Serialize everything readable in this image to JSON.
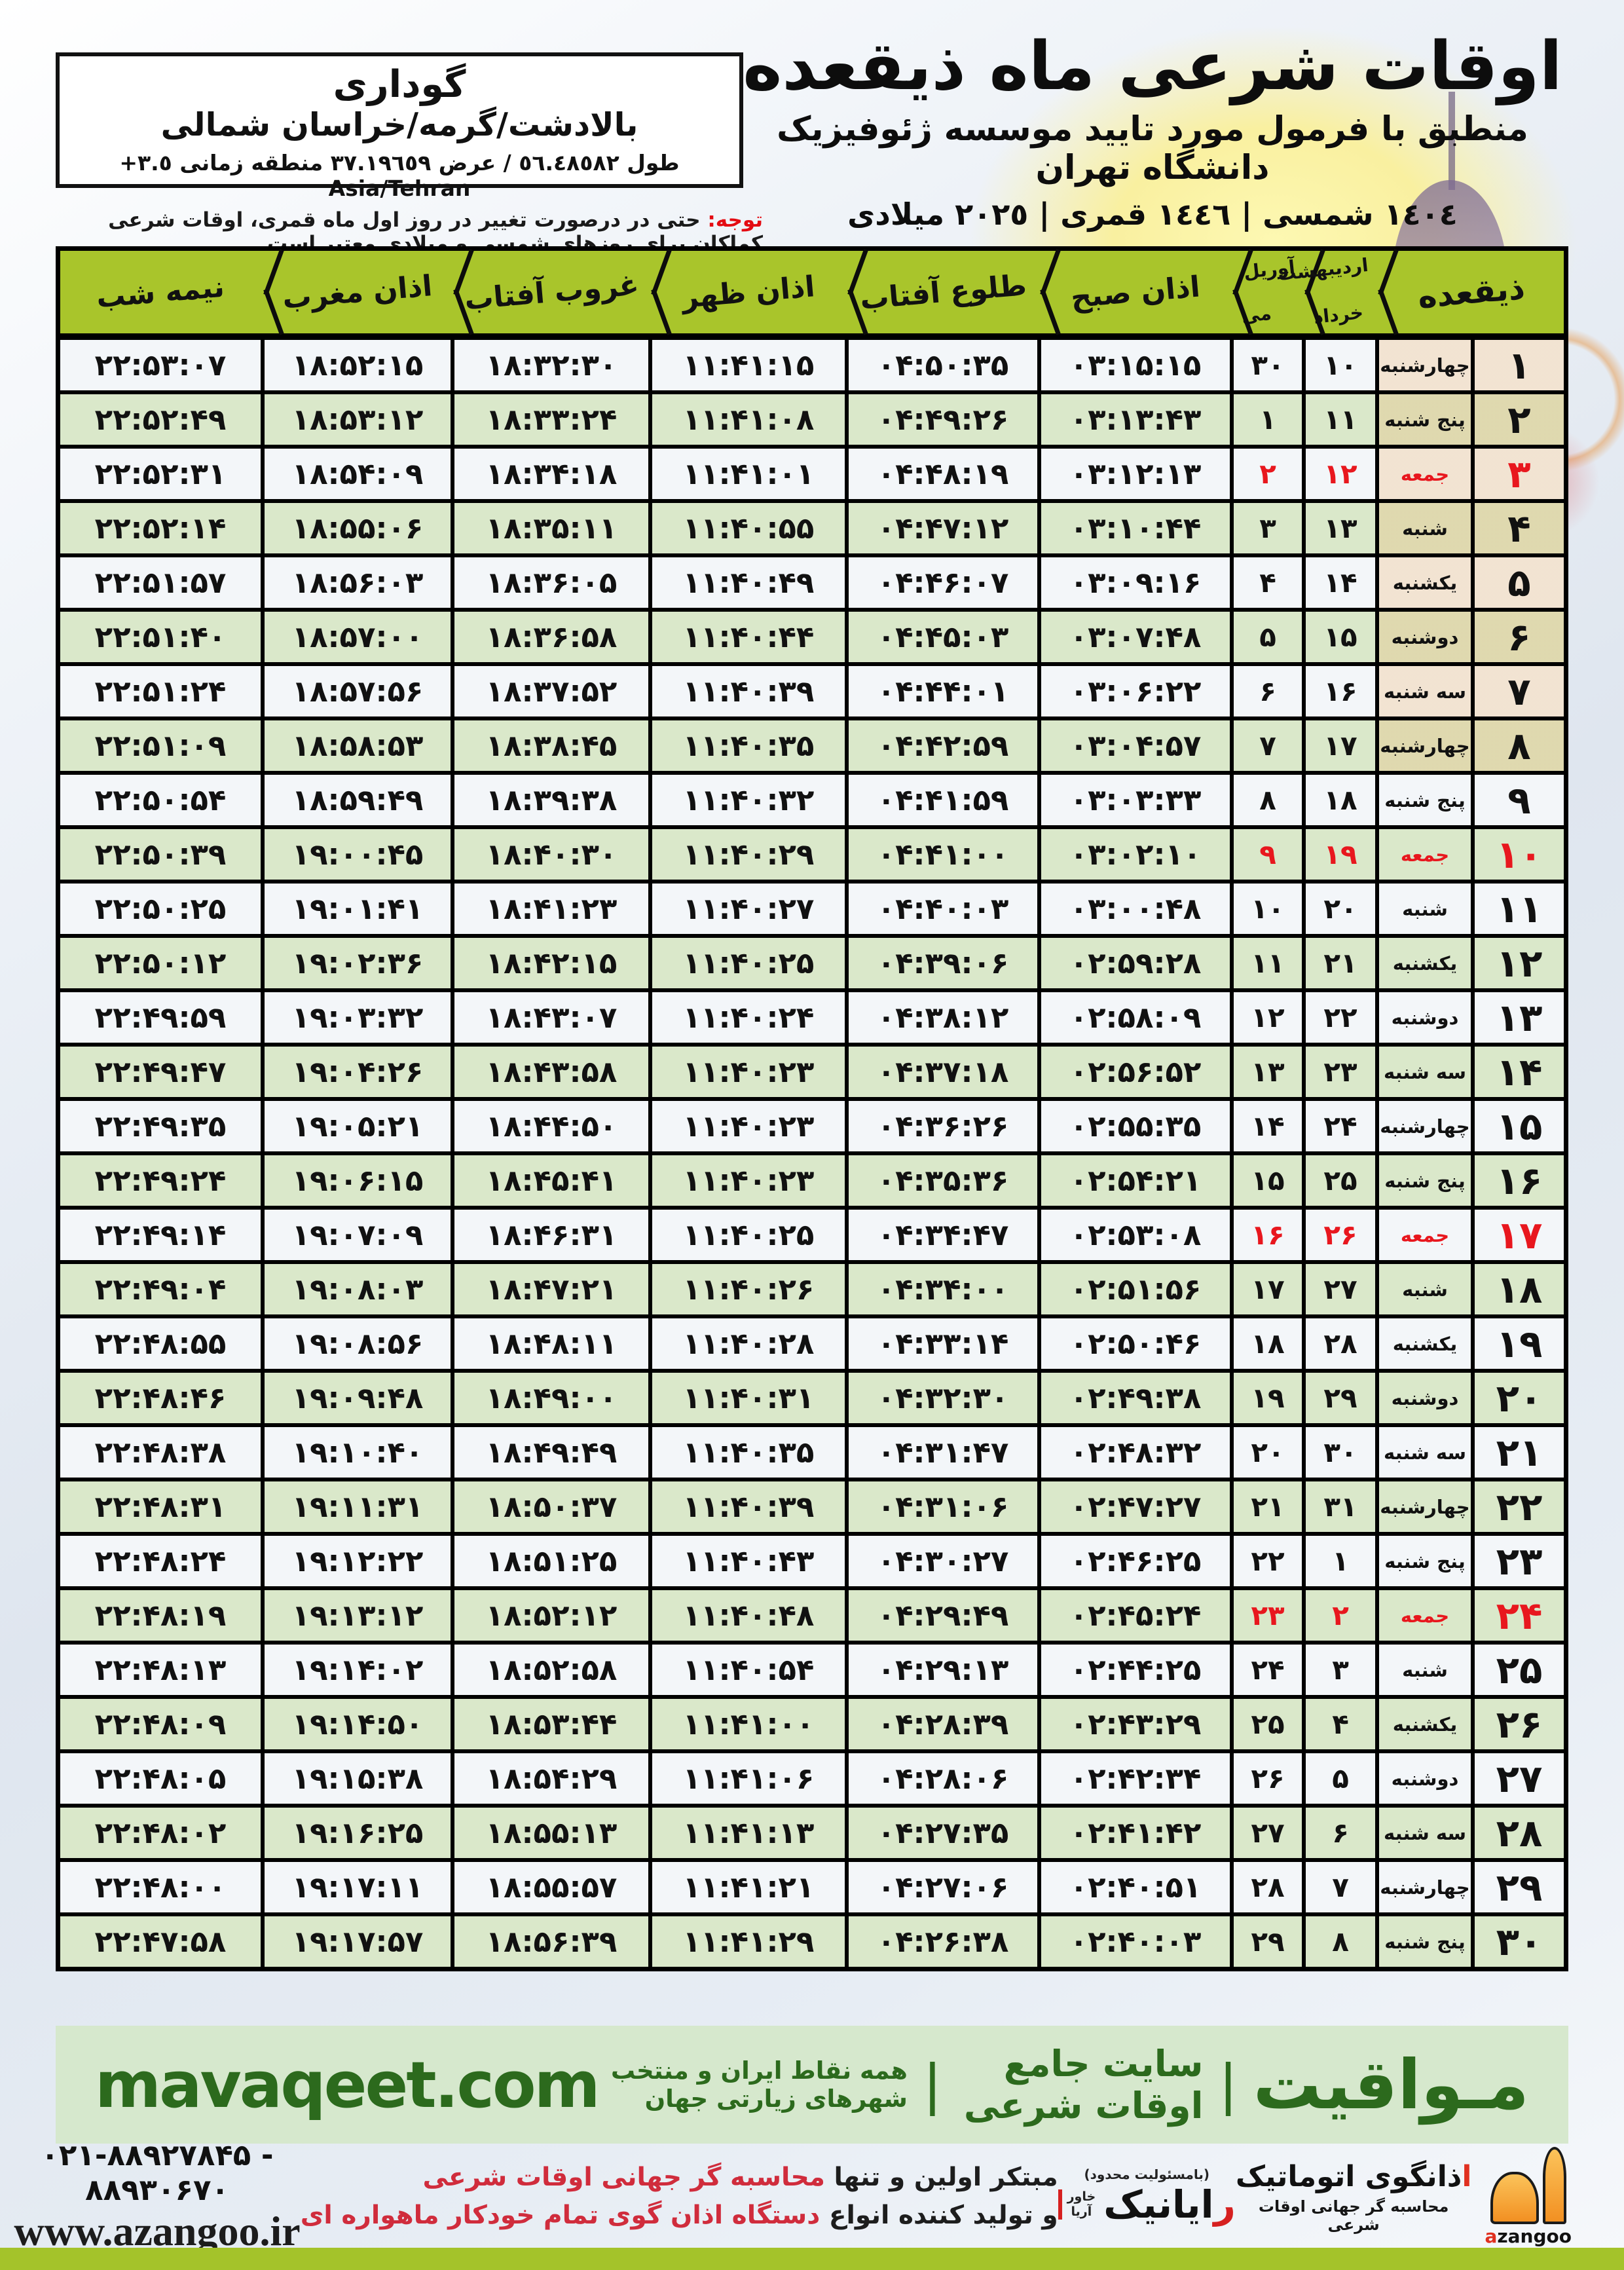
{
  "page": {
    "title": "اوقات شرعی ماه ذیقعده",
    "subtitle": "منطبق با فرمول مورد تایید موسسه ژئوفیزیک دانشگاه تهران",
    "year_line": "١٤٠٤ شمسی | ١٤٤٦ قمری | ٢٠٢٥ میلادی"
  },
  "location": {
    "name": "گوداری",
    "region": "بالادشت/گرمه/خراسان شمالی",
    "coords": "طول ٥٦.٤٨٥٨٢ / عرض ٣٧.١٩٦٥٩ منطقه زمانی",
    "timezone": "+٣.٥ Asia/Tehran"
  },
  "note": {
    "label": "توجه:",
    "text": " حتی در درصورت تغییر در روز اول ماه قمری، اوقات شرعی کماکان برای روزهای شمسی و میلادی معتبر است."
  },
  "table": {
    "headers": {
      "day": "ذیقعده",
      "month_fa_top": "اردیبهشت",
      "month_fa_bottom": "خرداد",
      "month_en_top": "آوریل",
      "month_en_bottom": "می",
      "fajr": "اذان صبح",
      "sunrise": "طلوع آفتاب",
      "dhuhr": "اذان ظهر",
      "sunset": "غروب آفتاب",
      "maghrib": "اذان مغرب",
      "midnight": "نیمه شب"
    },
    "rows": [
      {
        "day": "۱",
        "weekday": "چهارشنبه",
        "month_day_fa": "۱۰",
        "month_day_en": "۳۰",
        "fajr": "۰۳:۱۵:۱۵",
        "sunrise": "۰۴:۵۰:۳۵",
        "dhuhr": "۱۱:۴۱:۱۵",
        "sunset": "۱۸:۳۲:۳۰",
        "maghrib": "۱۸:۵۲:۱۵",
        "midnight": "۲۲:۵۳:۰۷",
        "friday": false
      },
      {
        "day": "۲",
        "weekday": "پنج شنبه",
        "month_day_fa": "۱۱",
        "month_day_en": "۱",
        "fajr": "۰۳:۱۳:۴۳",
        "sunrise": "۰۴:۴۹:۲۶",
        "dhuhr": "۱۱:۴۱:۰۸",
        "sunset": "۱۸:۳۳:۲۴",
        "maghrib": "۱۸:۵۳:۱۲",
        "midnight": "۲۲:۵۲:۴۹",
        "friday": false
      },
      {
        "day": "۳",
        "weekday": "جمعه",
        "month_day_fa": "۱۲",
        "month_day_en": "۲",
        "fajr": "۰۳:۱۲:۱۳",
        "sunrise": "۰۴:۴۸:۱۹",
        "dhuhr": "۱۱:۴۱:۰۱",
        "sunset": "۱۸:۳۴:۱۸",
        "maghrib": "۱۸:۵۴:۰۹",
        "midnight": "۲۲:۵۲:۳۱",
        "friday": true
      },
      {
        "day": "۴",
        "weekday": "شنبه",
        "month_day_fa": "۱۳",
        "month_day_en": "۳",
        "fajr": "۰۳:۱۰:۴۴",
        "sunrise": "۰۴:۴۷:۱۲",
        "dhuhr": "۱۱:۴۰:۵۵",
        "sunset": "۱۸:۳۵:۱۱",
        "maghrib": "۱۸:۵۵:۰۶",
        "midnight": "۲۲:۵۲:۱۴",
        "friday": false
      },
      {
        "day": "۵",
        "weekday": "یکشنبه",
        "month_day_fa": "۱۴",
        "month_day_en": "۴",
        "fajr": "۰۳:۰۹:۱۶",
        "sunrise": "۰۴:۴۶:۰۷",
        "dhuhr": "۱۱:۴۰:۴۹",
        "sunset": "۱۸:۳۶:۰۵",
        "maghrib": "۱۸:۵۶:۰۳",
        "midnight": "۲۲:۵۱:۵۷",
        "friday": false
      },
      {
        "day": "۶",
        "weekday": "دوشنبه",
        "month_day_fa": "۱۵",
        "month_day_en": "۵",
        "fajr": "۰۳:۰۷:۴۸",
        "sunrise": "۰۴:۴۵:۰۳",
        "dhuhr": "۱۱:۴۰:۴۴",
        "sunset": "۱۸:۳۶:۵۸",
        "maghrib": "۱۸:۵۷:۰۰",
        "midnight": "۲۲:۵۱:۴۰",
        "friday": false
      },
      {
        "day": "۷",
        "weekday": "سه شنبه",
        "month_day_fa": "۱۶",
        "month_day_en": "۶",
        "fajr": "۰۳:۰۶:۲۲",
        "sunrise": "۰۴:۴۴:۰۱",
        "dhuhr": "۱۱:۴۰:۳۹",
        "sunset": "۱۸:۳۷:۵۲",
        "maghrib": "۱۸:۵۷:۵۶",
        "midnight": "۲۲:۵۱:۲۴",
        "friday": false
      },
      {
        "day": "۸",
        "weekday": "چهارشنبه",
        "month_day_fa": "۱۷",
        "month_day_en": "۷",
        "fajr": "۰۳:۰۴:۵۷",
        "sunrise": "۰۴:۴۲:۵۹",
        "dhuhr": "۱۱:۴۰:۳۵",
        "sunset": "۱۸:۳۸:۴۵",
        "maghrib": "۱۸:۵۸:۵۳",
        "midnight": "۲۲:۵۱:۰۹",
        "friday": false
      },
      {
        "day": "۹",
        "weekday": "پنج شنبه",
        "month_day_fa": "۱۸",
        "month_day_en": "۸",
        "fajr": "۰۳:۰۳:۳۳",
        "sunrise": "۰۴:۴۱:۵۹",
        "dhuhr": "۱۱:۴۰:۳۲",
        "sunset": "۱۸:۳۹:۳۸",
        "maghrib": "۱۸:۵۹:۴۹",
        "midnight": "۲۲:۵۰:۵۴",
        "friday": false
      },
      {
        "day": "۱۰",
        "weekday": "جمعه",
        "month_day_fa": "۱۹",
        "month_day_en": "۹",
        "fajr": "۰۳:۰۲:۱۰",
        "sunrise": "۰۴:۴۱:۰۰",
        "dhuhr": "۱۱:۴۰:۲۹",
        "sunset": "۱۸:۴۰:۳۰",
        "maghrib": "۱۹:۰۰:۴۵",
        "midnight": "۲۲:۵۰:۳۹",
        "friday": true
      },
      {
        "day": "۱۱",
        "weekday": "شنبه",
        "month_day_fa": "۲۰",
        "month_day_en": "۱۰",
        "fajr": "۰۳:۰۰:۴۸",
        "sunrise": "۰۴:۴۰:۰۳",
        "dhuhr": "۱۱:۴۰:۲۷",
        "sunset": "۱۸:۴۱:۲۳",
        "maghrib": "۱۹:۰۱:۴۱",
        "midnight": "۲۲:۵۰:۲۵",
        "friday": false
      },
      {
        "day": "۱۲",
        "weekday": "یکشنبه",
        "month_day_fa": "۲۱",
        "month_day_en": "۱۱",
        "fajr": "۰۲:۵۹:۲۸",
        "sunrise": "۰۴:۳۹:۰۶",
        "dhuhr": "۱۱:۴۰:۲۵",
        "sunset": "۱۸:۴۲:۱۵",
        "maghrib": "۱۹:۰۲:۳۶",
        "midnight": "۲۲:۵۰:۱۲",
        "friday": false
      },
      {
        "day": "۱۳",
        "weekday": "دوشنبه",
        "month_day_fa": "۲۲",
        "month_day_en": "۱۲",
        "fajr": "۰۲:۵۸:۰۹",
        "sunrise": "۰۴:۳۸:۱۲",
        "dhuhr": "۱۱:۴۰:۲۴",
        "sunset": "۱۸:۴۳:۰۷",
        "maghrib": "۱۹:۰۳:۳۲",
        "midnight": "۲۲:۴۹:۵۹",
        "friday": false
      },
      {
        "day": "۱۴",
        "weekday": "سه شنبه",
        "month_day_fa": "۲۳",
        "month_day_en": "۱۳",
        "fajr": "۰۲:۵۶:۵۲",
        "sunrise": "۰۴:۳۷:۱۸",
        "dhuhr": "۱۱:۴۰:۲۳",
        "sunset": "۱۸:۴۳:۵۸",
        "maghrib": "۱۹:۰۴:۲۶",
        "midnight": "۲۲:۴۹:۴۷",
        "friday": false
      },
      {
        "day": "۱۵",
        "weekday": "چهارشنبه",
        "month_day_fa": "۲۴",
        "month_day_en": "۱۴",
        "fajr": "۰۲:۵۵:۳۵",
        "sunrise": "۰۴:۳۶:۲۶",
        "dhuhr": "۱۱:۴۰:۲۳",
        "sunset": "۱۸:۴۴:۵۰",
        "maghrib": "۱۹:۰۵:۲۱",
        "midnight": "۲۲:۴۹:۳۵",
        "friday": false
      },
      {
        "day": "۱۶",
        "weekday": "پنج شنبه",
        "month_day_fa": "۲۵",
        "month_day_en": "۱۵",
        "fajr": "۰۲:۵۴:۲۱",
        "sunrise": "۰۴:۳۵:۳۶",
        "dhuhr": "۱۱:۴۰:۲۳",
        "sunset": "۱۸:۴۵:۴۱",
        "maghrib": "۱۹:۰۶:۱۵",
        "midnight": "۲۲:۴۹:۲۴",
        "friday": false
      },
      {
        "day": "۱۷",
        "weekday": "جمعه",
        "month_day_fa": "۲۶",
        "month_day_en": "۱۶",
        "fajr": "۰۲:۵۳:۰۸",
        "sunrise": "۰۴:۳۴:۴۷",
        "dhuhr": "۱۱:۴۰:۲۵",
        "sunset": "۱۸:۴۶:۳۱",
        "maghrib": "۱۹:۰۷:۰۹",
        "midnight": "۲۲:۴۹:۱۴",
        "friday": true
      },
      {
        "day": "۱۸",
        "weekday": "شنبه",
        "month_day_fa": "۲۷",
        "month_day_en": "۱۷",
        "fajr": "۰۲:۵۱:۵۶",
        "sunrise": "۰۴:۳۴:۰۰",
        "dhuhr": "۱۱:۴۰:۲۶",
        "sunset": "۱۸:۴۷:۲۱",
        "maghrib": "۱۹:۰۸:۰۳",
        "midnight": "۲۲:۴۹:۰۴",
        "friday": false
      },
      {
        "day": "۱۹",
        "weekday": "یکشنبه",
        "month_day_fa": "۲۸",
        "month_day_en": "۱۸",
        "fajr": "۰۲:۵۰:۴۶",
        "sunrise": "۰۴:۳۳:۱۴",
        "dhuhr": "۱۱:۴۰:۲۸",
        "sunset": "۱۸:۴۸:۱۱",
        "maghrib": "۱۹:۰۸:۵۶",
        "midnight": "۲۲:۴۸:۵۵",
        "friday": false
      },
      {
        "day": "۲۰",
        "weekday": "دوشنبه",
        "month_day_fa": "۲۹",
        "month_day_en": "۱۹",
        "fajr": "۰۲:۴۹:۳۸",
        "sunrise": "۰۴:۳۲:۳۰",
        "dhuhr": "۱۱:۴۰:۳۱",
        "sunset": "۱۸:۴۹:۰۰",
        "maghrib": "۱۹:۰۹:۴۸",
        "midnight": "۲۲:۴۸:۴۶",
        "friday": false
      },
      {
        "day": "۲۱",
        "weekday": "سه شنبه",
        "month_day_fa": "۳۰",
        "month_day_en": "۲۰",
        "fajr": "۰۲:۴۸:۳۲",
        "sunrise": "۰۴:۳۱:۴۷",
        "dhuhr": "۱۱:۴۰:۳۵",
        "sunset": "۱۸:۴۹:۴۹",
        "maghrib": "۱۹:۱۰:۴۰",
        "midnight": "۲۲:۴۸:۳۸",
        "friday": false
      },
      {
        "day": "۲۲",
        "weekday": "چهارشنبه",
        "month_day_fa": "۳۱",
        "month_day_en": "۲۱",
        "fajr": "۰۲:۴۷:۲۷",
        "sunrise": "۰۴:۳۱:۰۶",
        "dhuhr": "۱۱:۴۰:۳۹",
        "sunset": "۱۸:۵۰:۳۷",
        "maghrib": "۱۹:۱۱:۳۱",
        "midnight": "۲۲:۴۸:۳۱",
        "friday": false
      },
      {
        "day": "۲۳",
        "weekday": "پنج شنبه",
        "month_day_fa": "۱",
        "month_day_en": "۲۲",
        "fajr": "۰۲:۴۶:۲۵",
        "sunrise": "۰۴:۳۰:۲۷",
        "dhuhr": "۱۱:۴۰:۴۳",
        "sunset": "۱۸:۵۱:۲۵",
        "maghrib": "۱۹:۱۲:۲۲",
        "midnight": "۲۲:۴۸:۲۴",
        "friday": false
      },
      {
        "day": "۲۴",
        "weekday": "جمعه",
        "month_day_fa": "۲",
        "month_day_en": "۲۳",
        "fajr": "۰۲:۴۵:۲۴",
        "sunrise": "۰۴:۲۹:۴۹",
        "dhuhr": "۱۱:۴۰:۴۸",
        "sunset": "۱۸:۵۲:۱۲",
        "maghrib": "۱۹:۱۳:۱۲",
        "midnight": "۲۲:۴۸:۱۹",
        "friday": true
      },
      {
        "day": "۲۵",
        "weekday": "شنبه",
        "month_day_fa": "۳",
        "month_day_en": "۲۴",
        "fajr": "۰۲:۴۴:۲۵",
        "sunrise": "۰۴:۲۹:۱۳",
        "dhuhr": "۱۱:۴۰:۵۴",
        "sunset": "۱۸:۵۲:۵۸",
        "maghrib": "۱۹:۱۴:۰۲",
        "midnight": "۲۲:۴۸:۱۳",
        "friday": false
      },
      {
        "day": "۲۶",
        "weekday": "یکشنبه",
        "month_day_fa": "۴",
        "month_day_en": "۲۵",
        "fajr": "۰۲:۴۳:۲۹",
        "sunrise": "۰۴:۲۸:۳۹",
        "dhuhr": "۱۱:۴۱:۰۰",
        "sunset": "۱۸:۵۳:۴۴",
        "maghrib": "۱۹:۱۴:۵۰",
        "midnight": "۲۲:۴۸:۰۹",
        "friday": false
      },
      {
        "day": "۲۷",
        "weekday": "دوشنبه",
        "month_day_fa": "۵",
        "month_day_en": "۲۶",
        "fajr": "۰۲:۴۲:۳۴",
        "sunrise": "۰۴:۲۸:۰۶",
        "dhuhr": "۱۱:۴۱:۰۶",
        "sunset": "۱۸:۵۴:۲۹",
        "maghrib": "۱۹:۱۵:۳۸",
        "midnight": "۲۲:۴۸:۰۵",
        "friday": false
      },
      {
        "day": "۲۸",
        "weekday": "سه شنبه",
        "month_day_fa": "۶",
        "month_day_en": "۲۷",
        "fajr": "۰۲:۴۱:۴۲",
        "sunrise": "۰۴:۲۷:۳۵",
        "dhuhr": "۱۱:۴۱:۱۳",
        "sunset": "۱۸:۵۵:۱۳",
        "maghrib": "۱۹:۱۶:۲۵",
        "midnight": "۲۲:۴۸:۰۲",
        "friday": false
      },
      {
        "day": "۲۹",
        "weekday": "چهارشنبه",
        "month_day_fa": "۷",
        "month_day_en": "۲۸",
        "fajr": "۰۲:۴۰:۵۱",
        "sunrise": "۰۴:۲۷:۰۶",
        "dhuhr": "۱۱:۴۱:۲۱",
        "sunset": "۱۸:۵۵:۵۷",
        "maghrib": "۱۹:۱۷:۱۱",
        "midnight": "۲۲:۴۸:۰۰",
        "friday": false
      },
      {
        "day": "۳۰",
        "weekday": "پنج شنبه",
        "month_day_fa": "۸",
        "month_day_en": "۲۹",
        "fajr": "۰۲:۴۰:۰۳",
        "sunrise": "۰۴:۲۶:۳۸",
        "dhuhr": "۱۱:۴۱:۲۹",
        "sunset": "۱۸:۵۶:۳۹",
        "maghrib": "۱۹:۱۷:۵۷",
        "midnight": "۲۲:۴۷:۵۸",
        "friday": false
      }
    ]
  },
  "banner": {
    "brand_fa": "مـواقیت",
    "sep": "|",
    "tagline": "سایت جامع اوقات شرعی",
    "coverage": "همه نقاط ایران و منتخب شهرهای زیارتی جهان",
    "site": "mavaqeet.com"
  },
  "bottom": {
    "phone": "۰۲۱-۸۸۹۲۷۸۴۵ - ۸۸۹۳۰۶۷۰",
    "website": "www.azangoo.ir",
    "promo_line1_black": "مبتکر اولین و تنها ",
    "promo_line1_red": "محاسبه گر جهانی اوقات شرعی",
    "promo_line2_black": "و تولید کننده انواع ",
    "promo_line2_red": "دستگاه اذان گوی تمام خودکار ماهواره ای",
    "rayanik_paren": "(بامسئولیت محدود)",
    "rayanik_first": "ر",
    "rayanik_rest": "ایانیک",
    "rayanik_sub1": "خاور",
    "rayanik_sub2": "آریا",
    "azangoo_first": "ا",
    "azangoo_rest": "ذانگوی اتوماتیک",
    "azangoo_sub": "محاسبه گر جهانی اوقات شرعی",
    "azangoo_en_first": "a",
    "azangoo_en_rest": "zangoo"
  },
  "colors": {
    "header_green": "#a9c52b",
    "row_green": "#dae8ca",
    "row_light": "#f3f6f9",
    "friday_red": "#e8171e",
    "banner_bg": "#d6e8cd",
    "banner_text": "#2c6a1d",
    "bar_green": "#a4c32a",
    "promo_red": "#d02c3c",
    "logo_orange": "#f29022"
  }
}
